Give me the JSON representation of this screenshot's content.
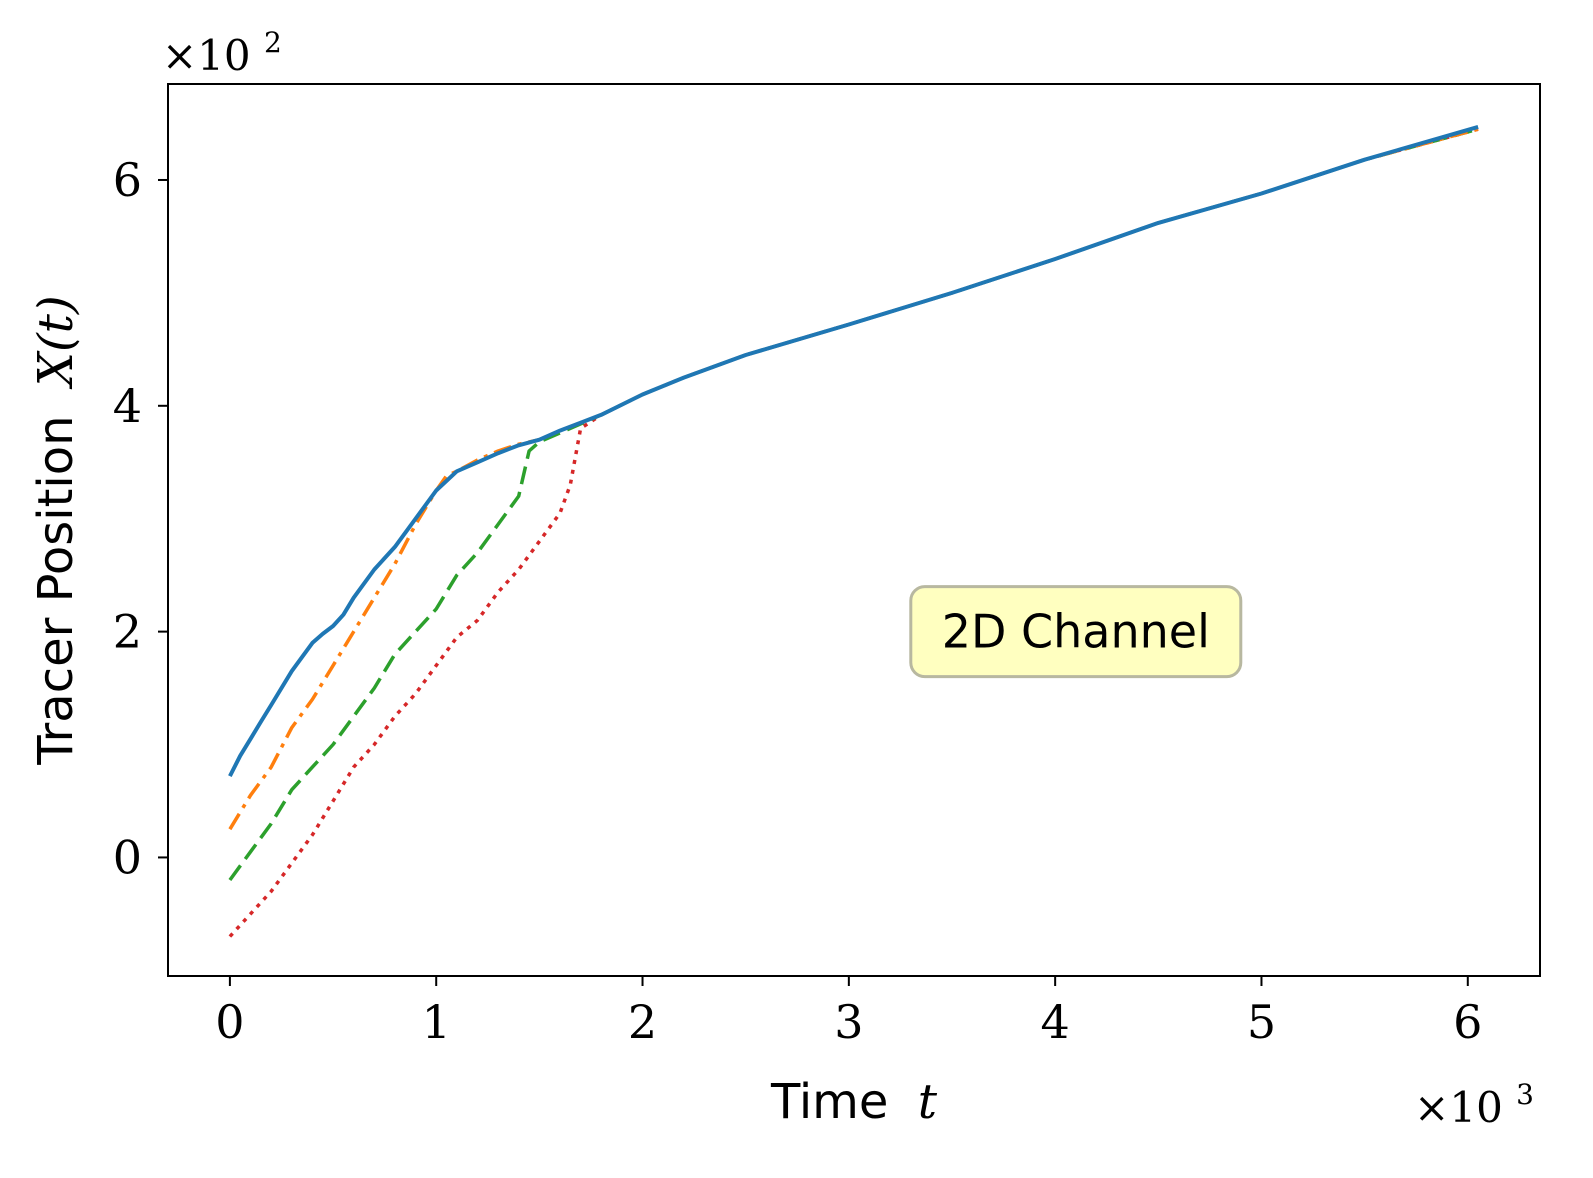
{
  "chart_data": {
    "type": "line",
    "title": "",
    "xlabel": "Time",
    "xlabel_var": "t",
    "ylabel": "Tracer Position",
    "ylabel_var": "X(t)",
    "x_scale_label": "×10",
    "x_scale_exp": "3",
    "y_scale_label": "×10",
    "y_scale_exp": "2",
    "xlim": [
      -0.3,
      6.35
    ],
    "ylim": [
      -1.05,
      6.85
    ],
    "xticks": [
      0,
      1,
      2,
      3,
      4,
      5,
      6
    ],
    "xtick_labels": [
      "0",
      "1",
      "2",
      "3",
      "4",
      "5",
      "6"
    ],
    "yticks": [
      0,
      2,
      4,
      6
    ],
    "ytick_labels": [
      "0",
      "2",
      "4",
      "6"
    ],
    "grid": false,
    "legend": null,
    "annotation": {
      "text": "2D Channel",
      "x": 4.1,
      "y": 2.0,
      "background": "#ffffc0",
      "border": "#b8b8a0"
    },
    "series": [
      {
        "color": "#d62728",
        "style": "dotted",
        "x": [
          0.0,
          0.1,
          0.2,
          0.3,
          0.4,
          0.5,
          0.6,
          0.7,
          0.8,
          0.9,
          1.0,
          1.1,
          1.2,
          1.3,
          1.4,
          1.5,
          1.6,
          1.65,
          1.7,
          1.8,
          2.0,
          2.2,
          2.5,
          3.0,
          3.5,
          4.0,
          4.5,
          5.0,
          5.5,
          6.05
        ],
        "y": [
          -0.7,
          -0.5,
          -0.3,
          -0.05,
          0.2,
          0.5,
          0.8,
          1.0,
          1.25,
          1.45,
          1.7,
          1.95,
          2.1,
          2.35,
          2.55,
          2.8,
          3.05,
          3.3,
          3.8,
          3.92,
          4.1,
          4.25,
          4.45,
          4.72,
          5.0,
          5.3,
          5.62,
          5.88,
          6.18,
          6.45
        ]
      },
      {
        "color": "#2ca02c",
        "style": "dashed",
        "x": [
          0.0,
          0.1,
          0.2,
          0.3,
          0.4,
          0.5,
          0.6,
          0.7,
          0.8,
          0.9,
          1.0,
          1.1,
          1.2,
          1.3,
          1.4,
          1.45,
          1.5,
          1.6,
          1.7,
          1.8,
          2.0,
          2.2,
          2.5,
          3.0,
          3.5,
          4.0,
          4.5,
          5.0,
          5.5,
          6.05
        ],
        "y": [
          -0.2,
          0.05,
          0.3,
          0.6,
          0.8,
          1.0,
          1.25,
          1.5,
          1.8,
          2.0,
          2.2,
          2.5,
          2.7,
          2.95,
          3.2,
          3.6,
          3.68,
          3.76,
          3.84,
          3.92,
          4.1,
          4.25,
          4.45,
          4.72,
          5.0,
          5.3,
          5.62,
          5.88,
          6.18,
          6.45
        ]
      },
      {
        "color": "#ff7f0e",
        "style": "dashdot",
        "x": [
          0.0,
          0.1,
          0.2,
          0.3,
          0.4,
          0.5,
          0.6,
          0.7,
          0.8,
          0.9,
          1.0,
          1.05,
          1.1,
          1.2,
          1.3,
          1.4,
          1.5,
          1.6,
          1.7,
          1.8,
          2.0,
          2.2,
          2.5,
          3.0,
          3.5,
          4.0,
          4.5,
          5.0,
          5.5,
          6.05
        ],
        "y": [
          0.25,
          0.55,
          0.8,
          1.15,
          1.4,
          1.7,
          2.0,
          2.3,
          2.6,
          2.95,
          3.25,
          3.38,
          3.42,
          3.52,
          3.6,
          3.66,
          3.7,
          3.78,
          3.85,
          3.92,
          4.1,
          4.25,
          4.45,
          4.72,
          5.0,
          5.3,
          5.62,
          5.88,
          6.18,
          6.45
        ]
      },
      {
        "color": "#1f77b4",
        "style": "solid",
        "x": [
          0.0,
          0.05,
          0.1,
          0.15,
          0.2,
          0.3,
          0.4,
          0.45,
          0.5,
          0.55,
          0.6,
          0.7,
          0.8,
          0.9,
          1.0,
          1.1,
          1.2,
          1.3,
          1.4,
          1.5,
          1.6,
          1.7,
          1.8,
          2.0,
          2.2,
          2.5,
          3.0,
          3.5,
          4.0,
          4.5,
          5.0,
          5.5,
          6.05
        ],
        "y": [
          0.72,
          0.9,
          1.05,
          1.2,
          1.35,
          1.65,
          1.9,
          1.98,
          2.05,
          2.15,
          2.3,
          2.55,
          2.75,
          3.0,
          3.25,
          3.42,
          3.5,
          3.58,
          3.65,
          3.7,
          3.78,
          3.85,
          3.92,
          4.1,
          4.25,
          4.45,
          4.72,
          5.0,
          5.3,
          5.62,
          5.88,
          6.18,
          6.47
        ]
      }
    ]
  }
}
